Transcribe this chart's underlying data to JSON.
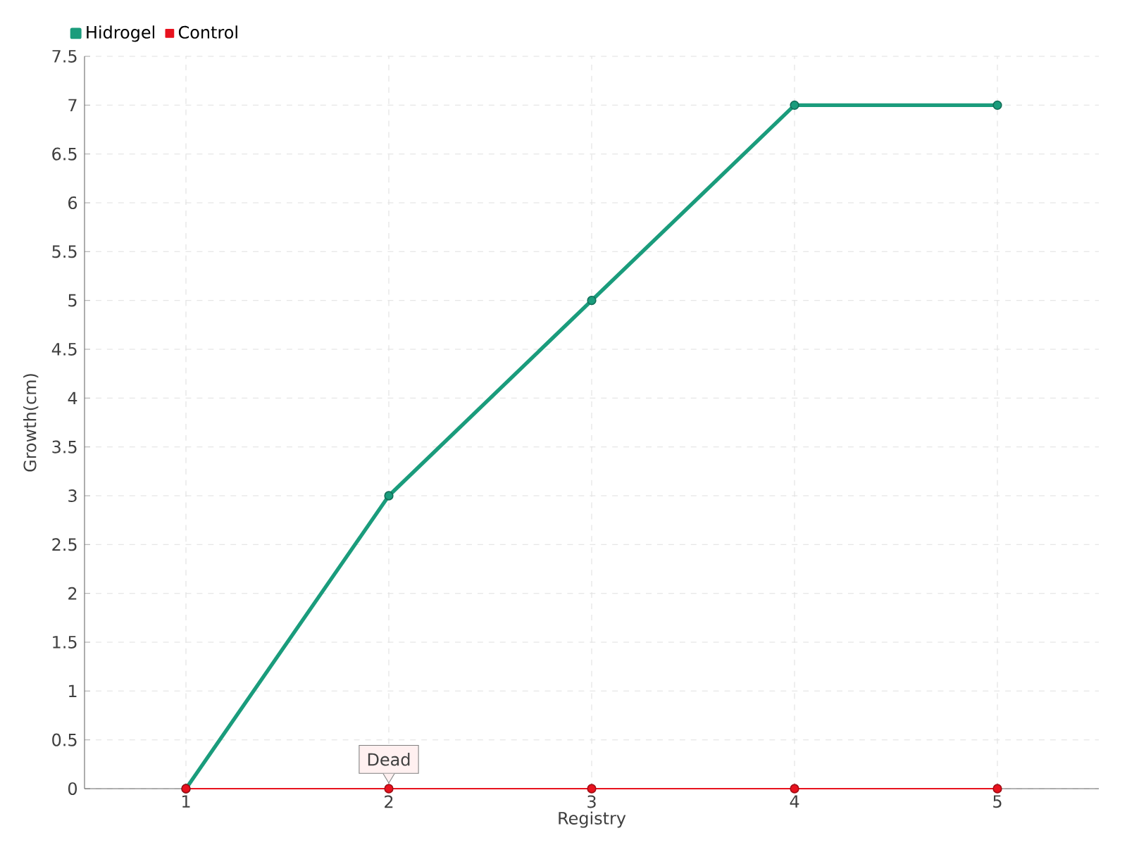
{
  "chart_data": {
    "type": "line",
    "xlabel": "Registry",
    "ylabel": "Growth(cm)",
    "categories": [
      "1",
      "2",
      "3",
      "4",
      "5"
    ],
    "series": [
      {
        "name": "Hidrogel",
        "color": "#1a9c7c",
        "values": [
          0,
          3,
          5,
          7,
          7
        ]
      },
      {
        "name": "Control",
        "color": "#e8121e",
        "values": [
          0,
          0,
          0,
          0,
          0
        ]
      }
    ],
    "ylim": [
      0,
      7.5
    ],
    "yticks": [
      0,
      0.5,
      1,
      1.5,
      2,
      2.5,
      3,
      3.5,
      4,
      4.5,
      5,
      5.5,
      6,
      6.5,
      7,
      7.5
    ],
    "annotations": [
      {
        "text": "Dead",
        "x": "2",
        "y": 0
      }
    ],
    "grid": true,
    "legend": "top left",
    "marker": "circle",
    "line_style": "solid"
  }
}
